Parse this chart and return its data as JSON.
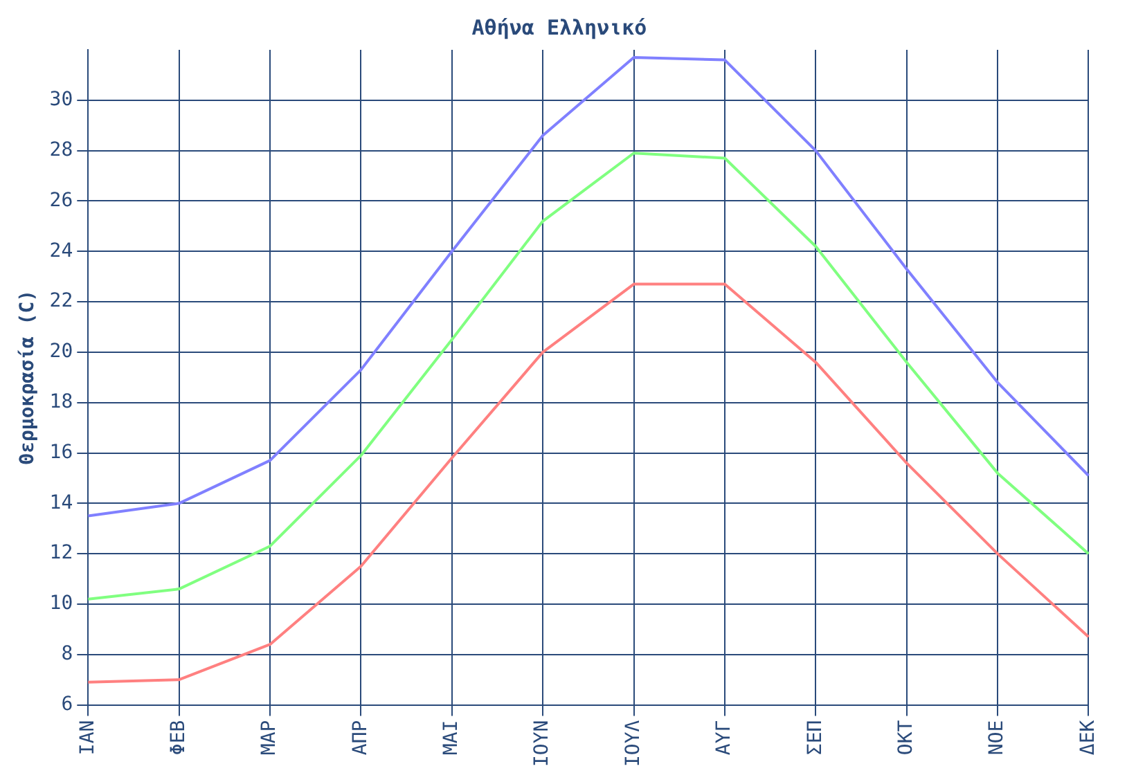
{
  "chart_data": {
    "type": "line",
    "title": "Αθήνα Ελληνικό",
    "ylabel": "Θερμοκρασία (C)",
    "categories": [
      "ΙΑΝ",
      "ΦΕΒ",
      "ΜΑΡ",
      "ΑΠΡ",
      "ΜΑΙ",
      "ΙΟΥΝ",
      "ΙΟΥΛ",
      "ΑΥΓ",
      "ΣΕΠ",
      "ΟΚΤ",
      "ΝΟΕ",
      "ΔΕΚ"
    ],
    "series": [
      {
        "color": "#8080ff",
        "values": [
          13.5,
          14.0,
          15.7,
          19.3,
          24.0,
          28.6,
          31.7,
          31.6,
          28.0,
          23.3,
          18.8,
          15.1
        ]
      },
      {
        "color": "#80ff80",
        "values": [
          10.2,
          10.6,
          12.3,
          15.9,
          20.5,
          25.2,
          27.9,
          27.7,
          24.2,
          19.6,
          15.2,
          12.0
        ]
      },
      {
        "color": "#ff8080",
        "values": [
          6.9,
          7.0,
          8.4,
          11.5,
          15.8,
          20.0,
          22.7,
          22.7,
          19.6,
          15.6,
          12.0,
          8.7
        ]
      }
    ],
    "ylim": [
      6,
      32
    ],
    "yticks": [
      6,
      8,
      10,
      12,
      14,
      16,
      18,
      20,
      22,
      24,
      26,
      28,
      30
    ],
    "grid": true,
    "legend": false,
    "marker": "none",
    "line_style": "solid"
  }
}
